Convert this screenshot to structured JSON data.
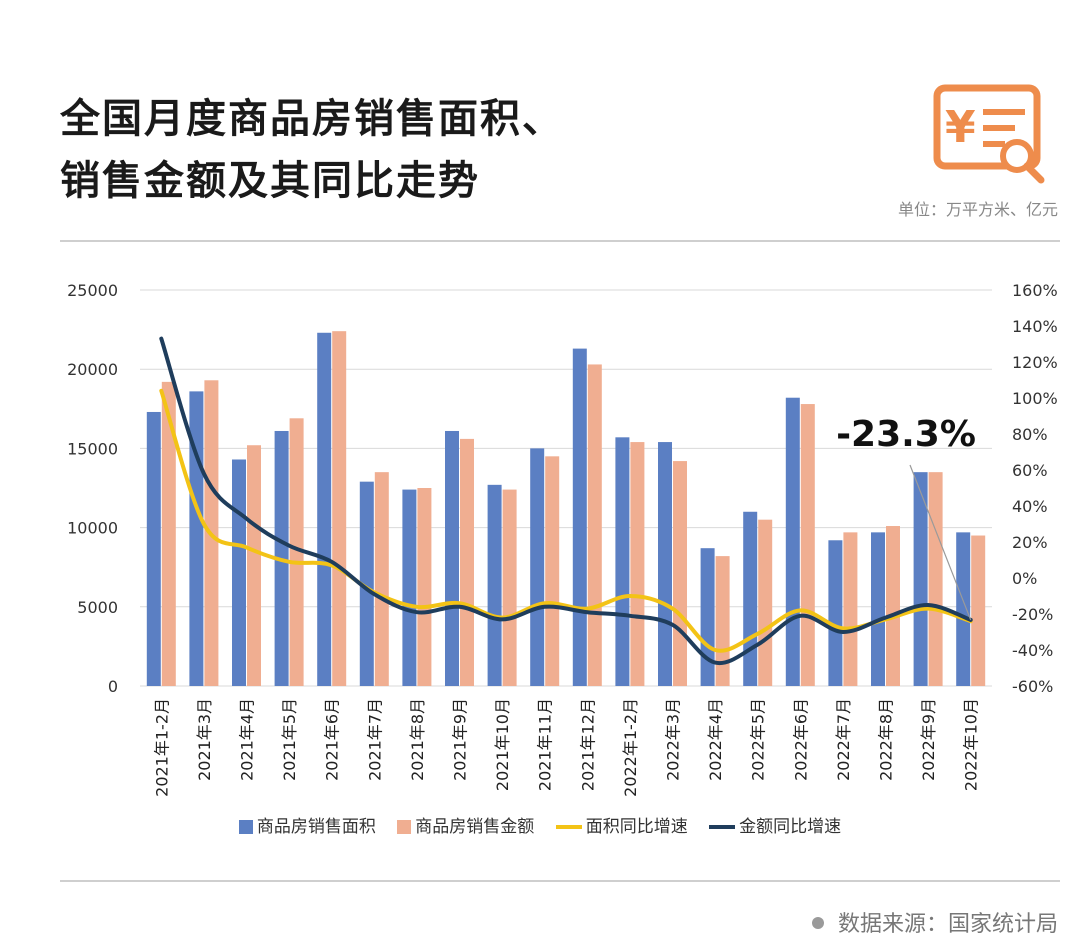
{
  "header": {
    "title_line1": "全国月度商品房销售面积、",
    "title_line2": "销售金额及其同比走势",
    "unit": "单位：万平方米、亿元",
    "logo_icon": "yuan-document-search-icon"
  },
  "footer": {
    "source": "数据来源：国家统计局"
  },
  "colors": {
    "area_bar": "#5b7fc3",
    "amount_bar": "#f0ae91",
    "area_growth": "#f3c316",
    "amount_growth": "#1f3d5c",
    "logo": "#ee8c4c"
  },
  "chart_data": {
    "type": "bar",
    "categories": [
      "2021年1-2月",
      "2021年3月",
      "2021年4月",
      "2021年5月",
      "2021年6月",
      "2021年7月",
      "2021年8月",
      "2021年9月",
      "2021年10月",
      "2021年11月",
      "2021年12月",
      "2022年1-2月",
      "2022年3月",
      "2022年4月",
      "2022年5月",
      "2022年6月",
      "2022年7月",
      "2022年8月",
      "2022年9月",
      "2022年10月"
    ],
    "series": [
      {
        "name": "商品房销售面积",
        "type": "bar",
        "axis": "left",
        "values": [
          17300,
          18600,
          14300,
          16100,
          22300,
          12900,
          12400,
          16100,
          12700,
          15000,
          21300,
          15700,
          15400,
          8700,
          11000,
          18200,
          9200,
          9700,
          13500,
          9700
        ]
      },
      {
        "name": "商品房销售金额",
        "type": "bar",
        "axis": "left",
        "values": [
          19200,
          19300,
          15200,
          16900,
          22400,
          13500,
          12500,
          15600,
          12400,
          14500,
          20300,
          15400,
          14200,
          8200,
          10500,
          17800,
          9700,
          10100,
          13500,
          9500
        ]
      },
      {
        "name": "面积同比增速",
        "type": "line",
        "axis": "right",
        "values": [
          104,
          30,
          17,
          9,
          7,
          -8,
          -16,
          -14,
          -22,
          -14,
          -17,
          -10,
          -17,
          -40,
          -31,
          -18,
          -28,
          -23,
          -17,
          -24
        ]
      },
      {
        "name": "金额同比增速",
        "type": "line",
        "axis": "right",
        "values": [
          133,
          58,
          33,
          18,
          9,
          -9,
          -19,
          -16,
          -23,
          -16,
          -19,
          -21,
          -26,
          -47,
          -37,
          -21,
          -30,
          -22,
          -15,
          -23.3
        ]
      }
    ],
    "left_axis": {
      "min": 0,
      "max": 25000,
      "ticks": [
        "0",
        "5000",
        "10000",
        "15000",
        "20000",
        "25000"
      ]
    },
    "right_axis": {
      "min": -60,
      "max": 160,
      "ticks": [
        "-60%",
        "-40%",
        "-20%",
        "0%",
        "20%",
        "40%",
        "60%",
        "80%",
        "100%",
        "120%",
        "140%",
        "160%"
      ]
    },
    "annotation": {
      "text": "-23.3%",
      "series": "金额同比增速",
      "index": 19
    },
    "legend": [
      "商品房销售面积",
      "商品房销售金额",
      "面积同比增速",
      "金额同比增速"
    ],
    "legend_position": "bottom",
    "grid": true
  }
}
